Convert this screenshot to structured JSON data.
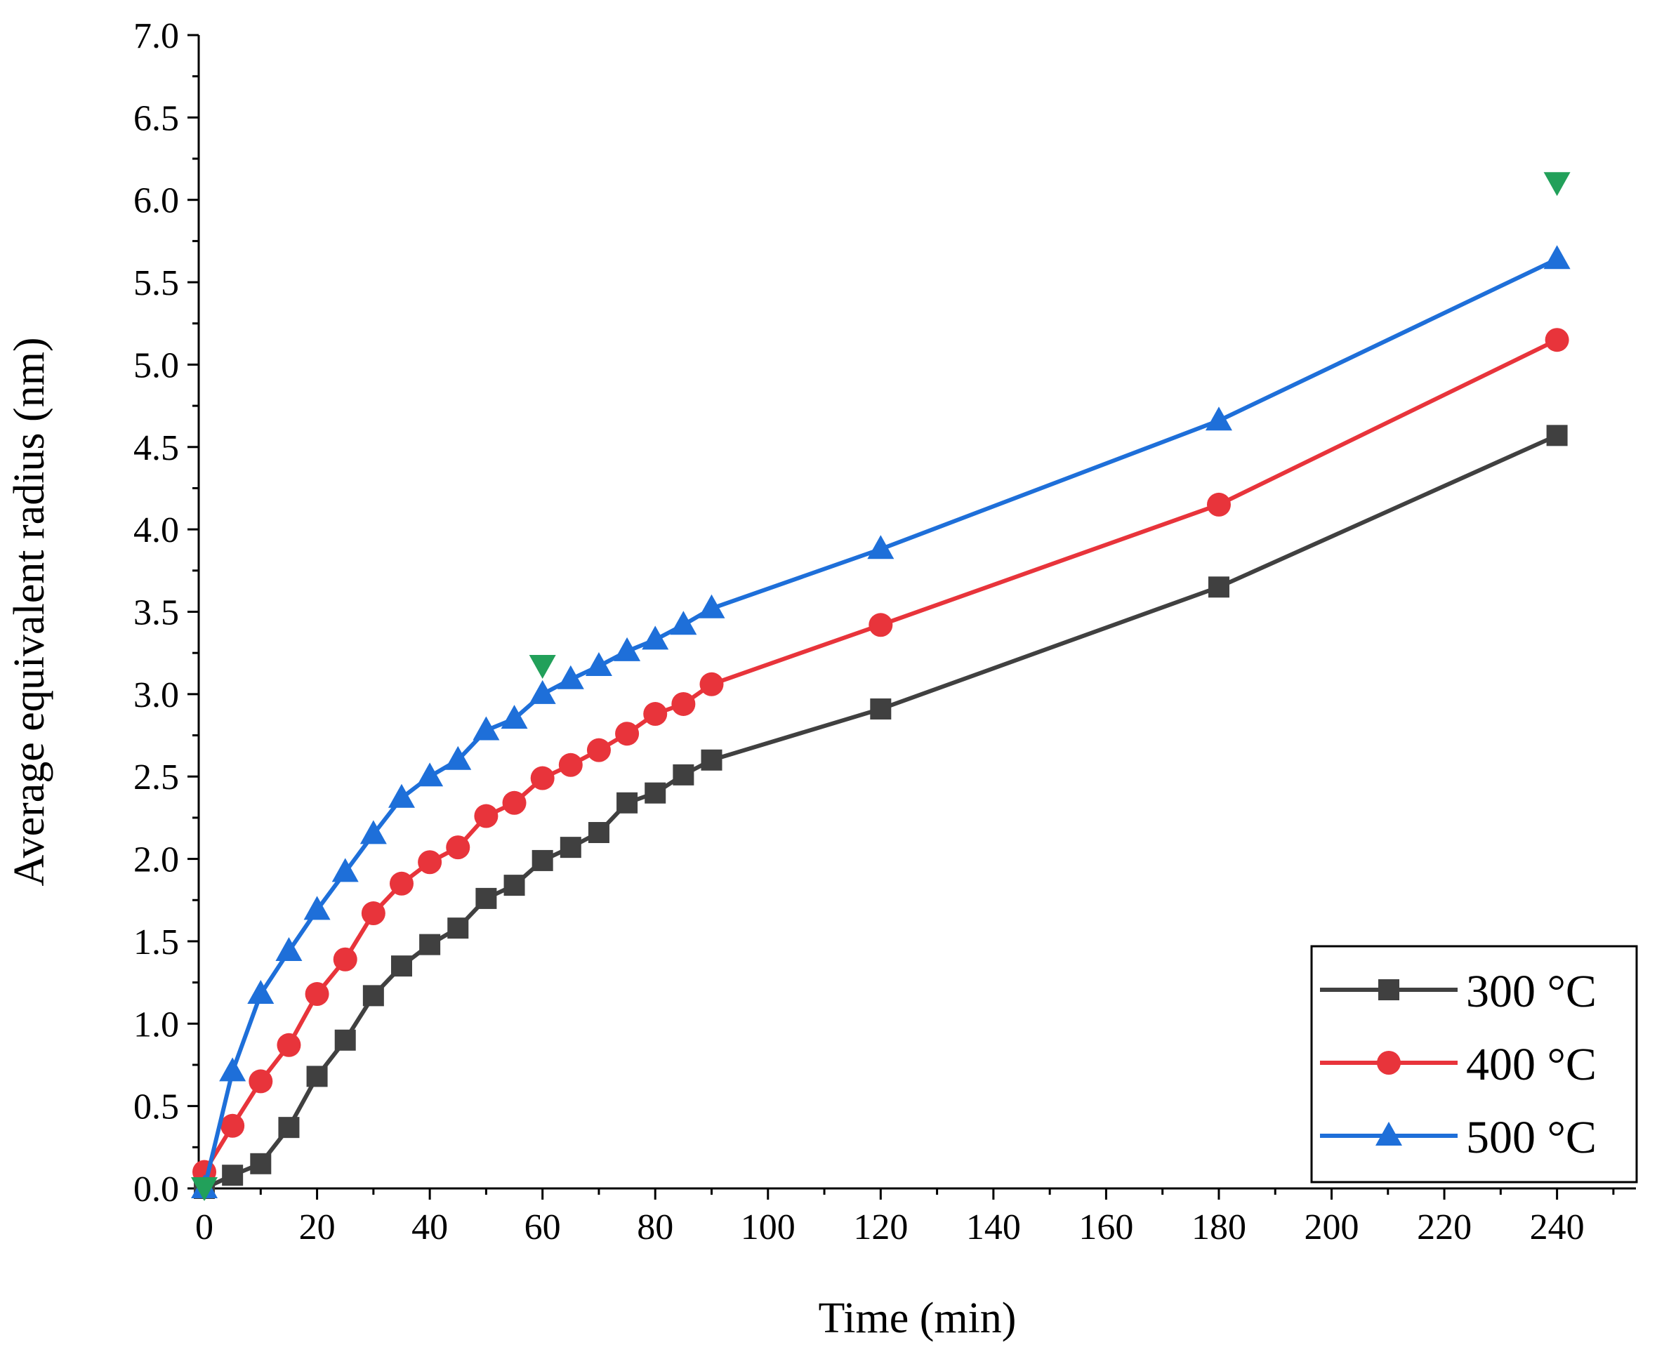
{
  "chart_data": {
    "type": "line",
    "title": "",
    "xlabel": "Time (min)",
    "ylabel": "Average equivalent radius (nm)",
    "xlim": [
      -1,
      254
    ],
    "ylim": [
      0,
      7
    ],
    "xticks": [
      0,
      20,
      40,
      60,
      80,
      100,
      120,
      140,
      160,
      180,
      200,
      220,
      240
    ],
    "xtick_labels": [
      "0",
      "20",
      "40",
      "60",
      "80",
      "100",
      "120",
      "140",
      "160",
      "180",
      "200",
      "220",
      "240"
    ],
    "yticks": [
      0,
      0.5,
      1,
      1.5,
      2,
      2.5,
      3,
      3.5,
      4,
      4.5,
      5,
      5.5,
      6,
      6.5,
      7
    ],
    "ytick_labels": [
      "0.0",
      "0.5",
      "1.0",
      "1.5",
      "2.0",
      "2.5",
      "3.0",
      "3.5",
      "4.0",
      "4.5",
      "5.0",
      "5.5",
      "6.0",
      "6.5",
      "7.0"
    ],
    "grid": false,
    "legend_position": "bottom-right",
    "series": [
      {
        "name": "300 °C",
        "color": "#404040",
        "marker": "square",
        "x": [
          0,
          5,
          10,
          15,
          20,
          25,
          30,
          35,
          40,
          45,
          50,
          55,
          60,
          65,
          70,
          75,
          80,
          85,
          90,
          120,
          180,
          240
        ],
        "y": [
          0.0,
          0.08,
          0.15,
          0.37,
          0.68,
          0.9,
          1.17,
          1.35,
          1.48,
          1.58,
          1.76,
          1.84,
          1.99,
          2.07,
          2.16,
          2.34,
          2.4,
          2.51,
          2.6,
          2.91,
          3.65,
          4.57
        ]
      },
      {
        "name": "400 °C",
        "color": "#e8343b",
        "marker": "circle",
        "x": [
          0,
          5,
          10,
          15,
          20,
          25,
          30,
          35,
          40,
          45,
          50,
          55,
          60,
          65,
          70,
          75,
          80,
          85,
          90,
          120,
          180,
          240
        ],
        "y": [
          0.1,
          0.38,
          0.65,
          0.87,
          1.18,
          1.39,
          1.67,
          1.85,
          1.98,
          2.07,
          2.26,
          2.34,
          2.49,
          2.57,
          2.66,
          2.76,
          2.88,
          2.94,
          3.06,
          3.42,
          4.15,
          5.15
        ]
      },
      {
        "name": "500 °C",
        "color": "#1e6fd9",
        "marker": "triangle-up",
        "x": [
          0,
          5,
          10,
          15,
          20,
          25,
          30,
          35,
          40,
          45,
          50,
          55,
          60,
          65,
          70,
          75,
          80,
          85,
          90,
          120,
          180,
          240
        ],
        "y": [
          0.0,
          0.71,
          1.18,
          1.44,
          1.69,
          1.92,
          2.15,
          2.37,
          2.5,
          2.6,
          2.78,
          2.85,
          3.0,
          3.09,
          3.17,
          3.26,
          3.33,
          3.42,
          3.52,
          3.88,
          4.66,
          5.64
        ]
      },
      {
        "name": "",
        "color": "#22a05a",
        "marker": "triangle-down",
        "line": false,
        "x": [
          0,
          60,
          240
        ],
        "y": [
          0.0,
          3.17,
          6.1
        ]
      }
    ]
  }
}
